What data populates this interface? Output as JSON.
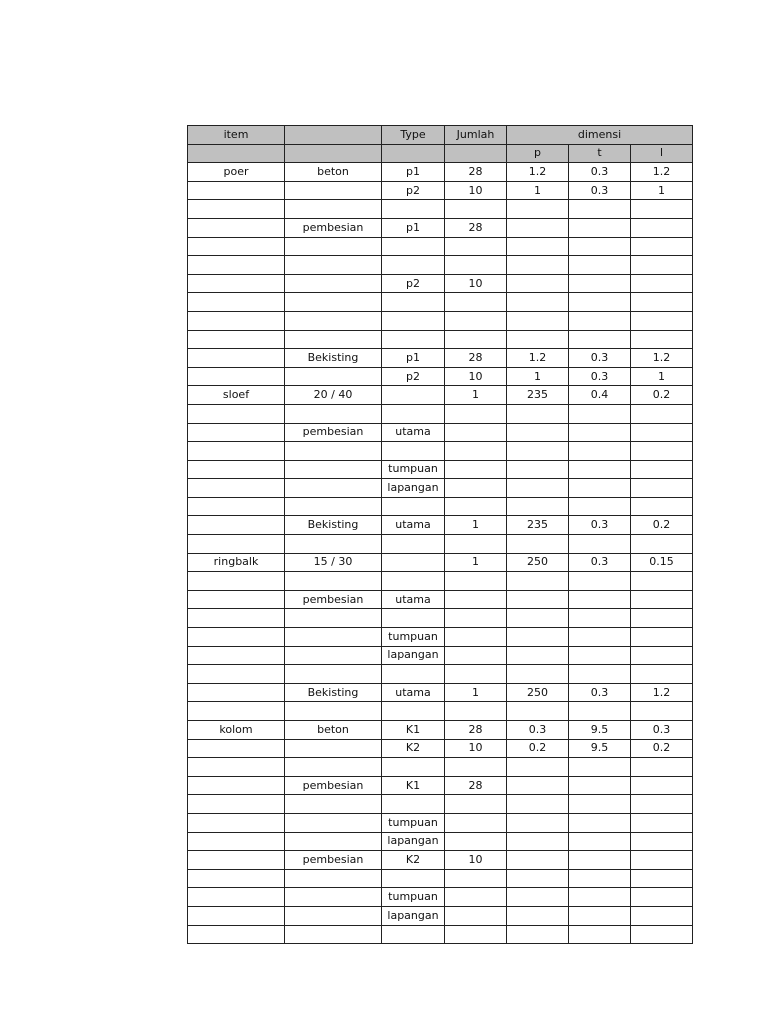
{
  "header": {
    "row1": [
      "item",
      "",
      "Type",
      "Jumlah",
      "dimensi"
    ],
    "row2": [
      "",
      "",
      "",
      "",
      "p",
      "t",
      "l"
    ]
  },
  "rows": [
    [
      "poer",
      "beton",
      "p1",
      "28",
      "1.2",
      "0.3",
      "1.2"
    ],
    [
      "",
      "",
      "p2",
      "10",
      "1",
      "0.3",
      "1"
    ],
    [
      "",
      "",
      "",
      "",
      "",
      "",
      ""
    ],
    [
      "",
      "pembesian",
      "p1",
      "28",
      "",
      "",
      ""
    ],
    [
      "",
      "",
      "",
      "",
      "",
      "",
      ""
    ],
    [
      "",
      "",
      "",
      "",
      "",
      "",
      ""
    ],
    [
      "",
      "",
      "p2",
      "10",
      "",
      "",
      ""
    ],
    [
      "",
      "",
      "",
      "",
      "",
      "",
      ""
    ],
    [
      "",
      "",
      "",
      "",
      "",
      "",
      ""
    ],
    [
      "",
      "",
      "",
      "",
      "",
      "",
      ""
    ],
    [
      "",
      "Bekisting",
      "p1",
      "28",
      "1.2",
      "0.3",
      "1.2"
    ],
    [
      "",
      "",
      "p2",
      "10",
      "1",
      "0.3",
      "1"
    ],
    [
      "sloef",
      "20 / 40",
      "",
      "1",
      "235",
      "0.4",
      "0.2"
    ],
    [
      "",
      "",
      "",
      "",
      "",
      "",
      ""
    ],
    [
      "",
      "pembesian",
      "utama",
      "",
      "",
      "",
      ""
    ],
    [
      "",
      "",
      "",
      "",
      "",
      "",
      ""
    ],
    [
      "",
      "",
      "tumpuan",
      "",
      "",
      "",
      ""
    ],
    [
      "",
      "",
      "lapangan",
      "",
      "",
      "",
      ""
    ],
    [
      "",
      "",
      "",
      "",
      "",
      "",
      ""
    ],
    [
      "",
      "Bekisting",
      "utama",
      "1",
      "235",
      "0.3",
      "0.2"
    ],
    [
      "",
      "",
      "",
      "",
      "",
      "",
      ""
    ],
    [
      "ringbalk",
      "15 / 30",
      "",
      "1",
      "250",
      "0.3",
      "0.15"
    ],
    [
      "",
      "",
      "",
      "",
      "",
      "",
      ""
    ],
    [
      "",
      "pembesian",
      "utama",
      "",
      "",
      "",
      ""
    ],
    [
      "",
      "",
      "",
      "",
      "",
      "",
      ""
    ],
    [
      "",
      "",
      "tumpuan",
      "",
      "",
      "",
      ""
    ],
    [
      "",
      "",
      "lapangan",
      "",
      "",
      "",
      ""
    ],
    [
      "",
      "",
      "",
      "",
      "",
      "",
      ""
    ],
    [
      "",
      "Bekisting",
      "utama",
      "1",
      "250",
      "0.3",
      "1.2"
    ],
    [
      "",
      "",
      "",
      "",
      "",
      "",
      ""
    ],
    [
      "kolom",
      "beton",
      "K1",
      "28",
      "0.3",
      "9.5",
      "0.3"
    ],
    [
      "",
      "",
      "K2",
      "10",
      "0.2",
      "9.5",
      "0.2"
    ],
    [
      "",
      "",
      "",
      "",
      "",
      "",
      ""
    ],
    [
      "",
      "pembesian",
      "K1",
      "28",
      "",
      "",
      ""
    ],
    [
      "",
      "",
      "",
      "",
      "",
      "",
      ""
    ],
    [
      "",
      "",
      "tumpuan",
      "",
      "",
      "",
      ""
    ],
    [
      "",
      "",
      "lapangan",
      "",
      "",
      "",
      ""
    ],
    [
      "",
      "pembesian",
      "K2",
      "10",
      "",
      "",
      ""
    ],
    [
      "",
      "",
      "",
      "",
      "",
      "",
      ""
    ],
    [
      "",
      "",
      "tumpuan",
      "",
      "",
      "",
      ""
    ],
    [
      "",
      "",
      "lapangan",
      "",
      "",
      "",
      ""
    ],
    [
      "",
      "",
      "",
      "",
      "",
      "",
      ""
    ]
  ],
  "colors": {
    "header_bg": "#c0c0c0",
    "border": "#222222"
  }
}
